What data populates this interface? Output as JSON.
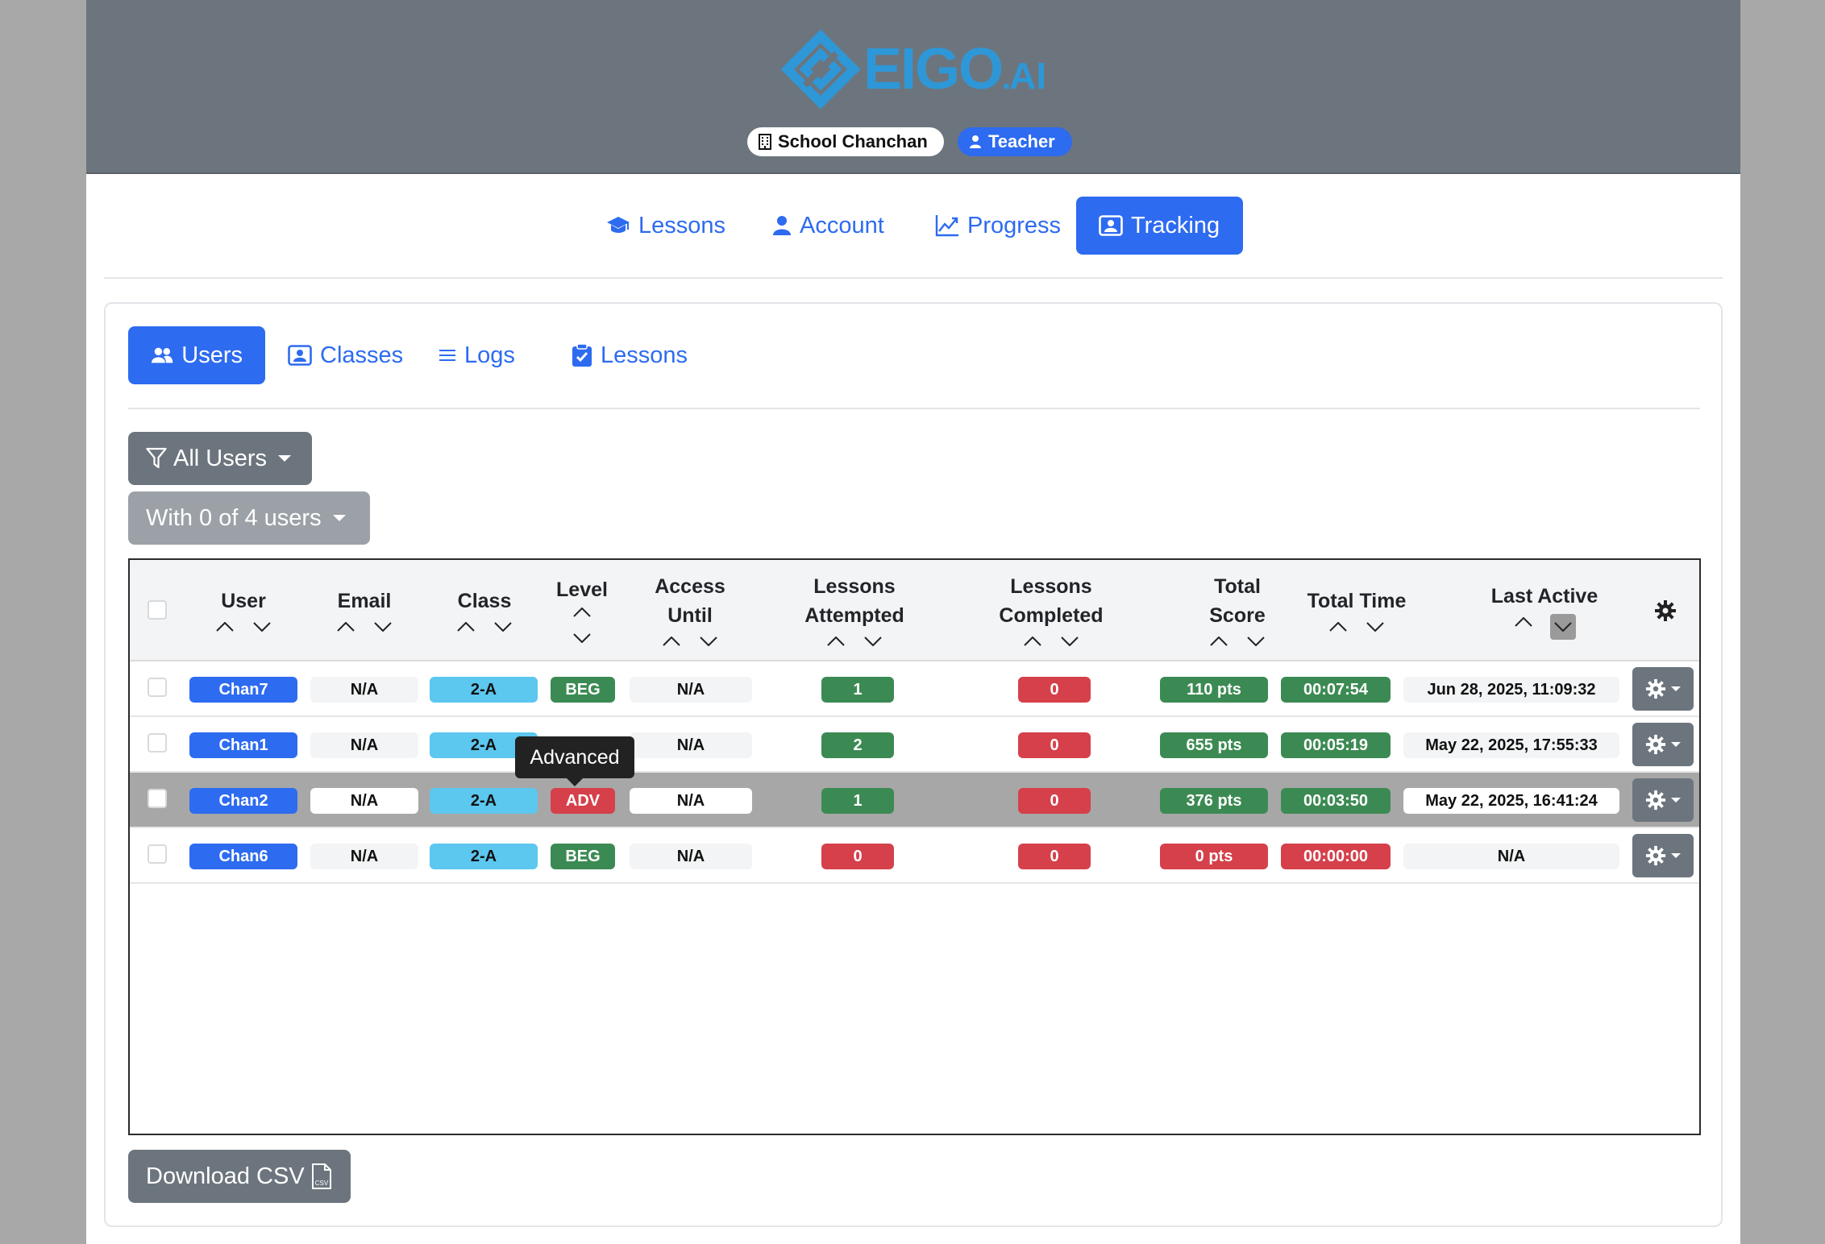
{
  "header": {
    "logo_text": "EIGO",
    "logo_dot": ".",
    "logo_suffix": "AI",
    "school": "School Chanchan",
    "role": "Teacher"
  },
  "nav": {
    "items": [
      {
        "label": "Lessons",
        "icon": "graduation-cap-icon"
      },
      {
        "label": "Account",
        "icon": "person-icon"
      },
      {
        "label": "Progress",
        "icon": "chart-line-icon"
      },
      {
        "label": "Tracking",
        "icon": "person-badge-icon",
        "active": true
      }
    ]
  },
  "tabs": [
    {
      "label": "Users",
      "icon": "people-icon",
      "active": true
    },
    {
      "label": "Classes",
      "icon": "person-badge-icon"
    },
    {
      "label": "Logs",
      "icon": "list-icon"
    },
    {
      "label": "Lessons",
      "icon": "clipboard-check-icon"
    }
  ],
  "filter": {
    "all_users": "All Users",
    "with_users": "With 0 of 4 users"
  },
  "table": {
    "columns": {
      "user": "User",
      "email": "Email",
      "class": "Class",
      "level": "Level",
      "access_1": "Access",
      "access_2": "Until",
      "attempted_1": "Lessons",
      "attempted_2": "Attempted",
      "completed_1": "Lessons",
      "completed_2": "Completed",
      "score_1": "Total",
      "score_2": "Score",
      "time": "Total Time",
      "last_active": "Last Active"
    },
    "rows": [
      {
        "user": "Chan7",
        "email": "N/A",
        "class": "2-A",
        "level": "BEG",
        "access": "N/A",
        "attempted": "1",
        "completed": "0",
        "score": "110 pts",
        "time": "00:07:54",
        "last_active": "Jun 28, 2025, 11:09:32"
      },
      {
        "user": "Chan1",
        "email": "N/A",
        "class": "2-A",
        "level": "",
        "access": "N/A",
        "attempted": "2",
        "completed": "0",
        "score": "655 pts",
        "time": "00:05:19",
        "last_active": "May 22, 2025, 17:55:33"
      },
      {
        "user": "Chan2",
        "email": "N/A",
        "class": "2-A",
        "level": "ADV",
        "access": "N/A",
        "attempted": "1",
        "completed": "0",
        "score": "376 pts",
        "time": "00:03:50",
        "last_active": "May 22, 2025, 16:41:24"
      },
      {
        "user": "Chan6",
        "email": "N/A",
        "class": "2-A",
        "level": "BEG",
        "access": "N/A",
        "attempted": "0",
        "completed": "0",
        "score": "0 pts",
        "time": "00:00:00",
        "last_active": "N/A"
      }
    ],
    "tooltip": "Advanced"
  },
  "download": {
    "label": "Download CSV",
    "icon_text": "CSV"
  },
  "colors": {
    "primary": "#2d6bf0",
    "header_bg": "#6c757d",
    "success": "#3c8a53",
    "danger": "#d5404b",
    "info": "#5cc7ef",
    "logo": "#2e97d8"
  }
}
